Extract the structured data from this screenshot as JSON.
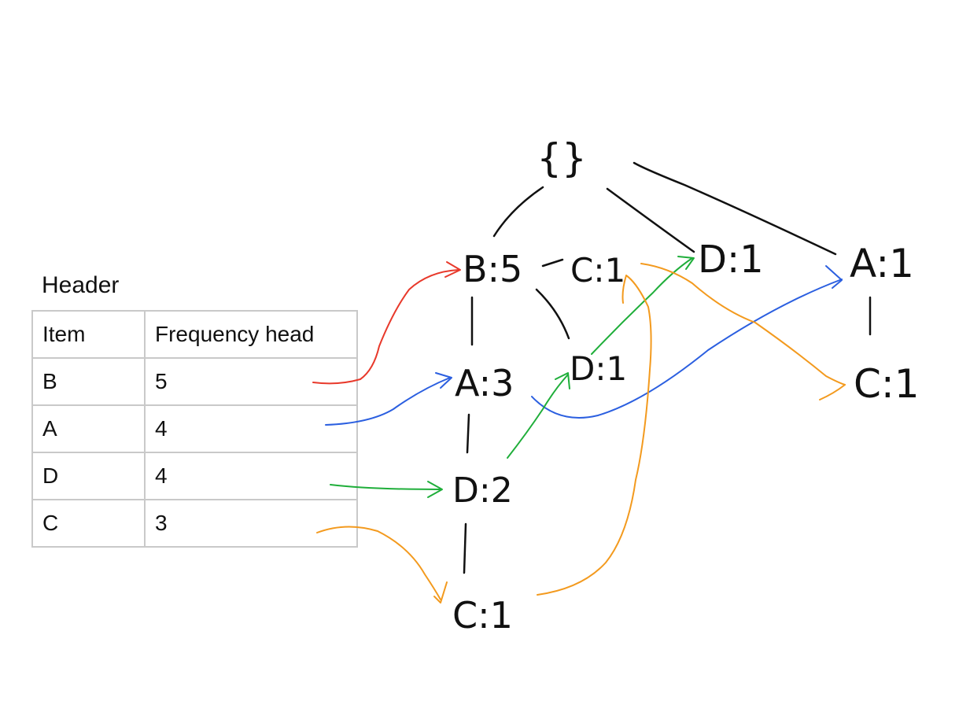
{
  "header_table": {
    "title": "Header",
    "columns": [
      "Item",
      "Frequency head"
    ],
    "rows": [
      {
        "item": "B",
        "frequency": "5"
      },
      {
        "item": "A",
        "frequency": "4"
      },
      {
        "item": "D",
        "frequency": "4"
      },
      {
        "item": "C",
        "frequency": "3"
      }
    ]
  },
  "tree": {
    "root_label": "{}",
    "nodes": {
      "b5": "B:5",
      "c1_top": "C:1",
      "d1_top": "D:1",
      "a1_top": "A:1",
      "a3": "A:3",
      "d1_mid": "D:1",
      "c1_right": "C:1",
      "d2": "D:2",
      "c1_bottom": "C:1"
    }
  },
  "colors": {
    "ink": "#111111",
    "link_b": "#e8392b",
    "link_a": "#2b5fe0",
    "link_d": "#1fae3a",
    "link_c": "#f39a1e",
    "table_border": "#c9c9c9"
  }
}
